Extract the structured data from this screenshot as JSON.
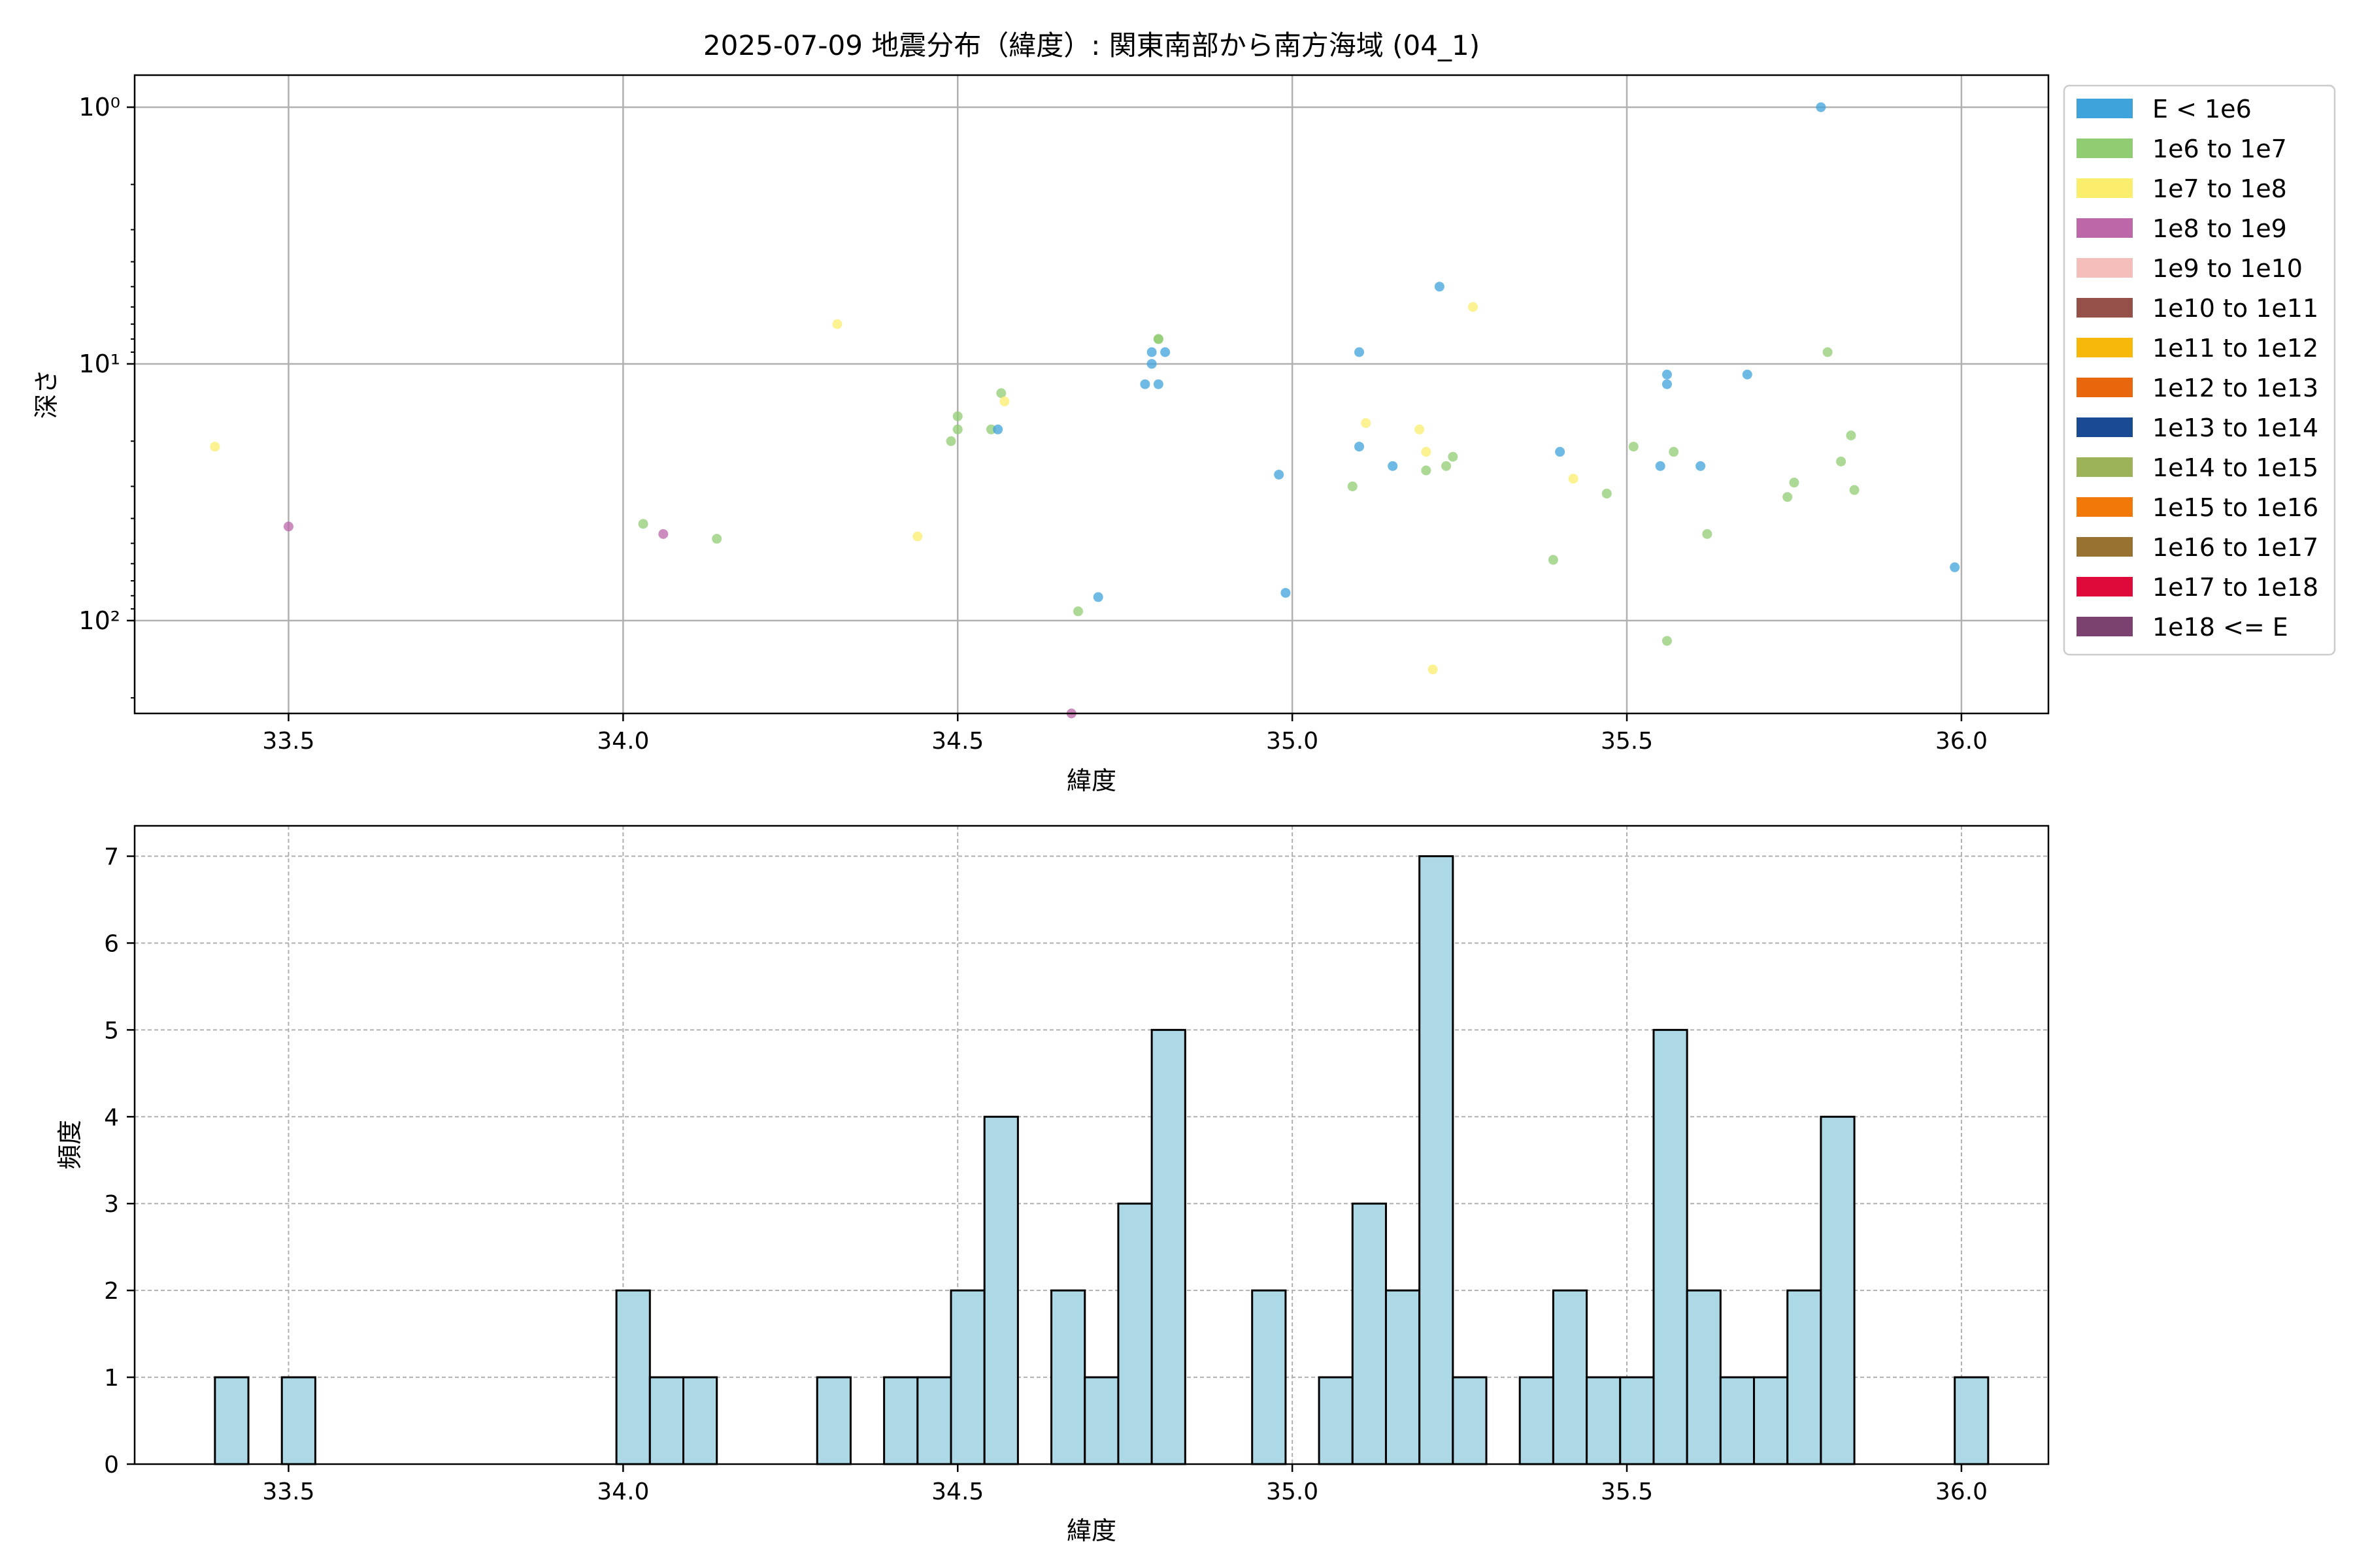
{
  "chart_data": [
    {
      "type": "scatter",
      "title": "2025-07-09 地震分布（緯度）: 関東南部から南方海域 (04_1)",
      "xlabel": "緯度",
      "ylabel": "深さ",
      "xlim": [
        33.27,
        36.13
      ],
      "ylim": [
        230,
        0.75
      ],
      "y_scale": "log-inverted",
      "y_ticks": [
        {
          "value": 1,
          "label": "10⁰"
        },
        {
          "value": 10,
          "label": "10¹"
        },
        {
          "value": 100,
          "label": "10²"
        }
      ],
      "x_ticks": [
        {
          "value": 33.5,
          "label": "33.5"
        },
        {
          "value": 34.0,
          "label": "34.0"
        },
        {
          "value": 34.5,
          "label": "34.5"
        },
        {
          "value": 35.0,
          "label": "35.0"
        },
        {
          "value": 35.5,
          "label": "35.5"
        },
        {
          "value": 36.0,
          "label": "36.0"
        }
      ],
      "grid": true,
      "legend_position": "outside-right",
      "legend": [
        {
          "label": "E < 1e6",
          "color": "#3fa3db"
        },
        {
          "label": "1e6 to 1e7",
          "color": "#90cc72"
        },
        {
          "label": "1e7 to 1e8",
          "color": "#fcee6d"
        },
        {
          "label": "1e8 to 1e9",
          "color": "#bb67a8"
        },
        {
          "label": "1e9 to 1e10",
          "color": "#f4bebb"
        },
        {
          "label": "1e10 to 1e11",
          "color": "#955049"
        },
        {
          "label": "1e11 to 1e12",
          "color": "#f8b80a"
        },
        {
          "label": "1e12 to 1e13",
          "color": "#e8660c"
        },
        {
          "label": "1e13 to 1e14",
          "color": "#1a4a94"
        },
        {
          "label": "1e14 to 1e15",
          "color": "#9db35a"
        },
        {
          "label": "1e15 to 1e16",
          "color": "#f2780a"
        },
        {
          "label": "1e16 to 1e17",
          "color": "#977230"
        },
        {
          "label": "1e17 to 1e18",
          "color": "#de0a3a"
        },
        {
          "label": "1e18 <= E",
          "color": "#7c426f"
        }
      ],
      "points": [
        {
          "x": 33.39,
          "y": 21,
          "c": 2
        },
        {
          "x": 33.5,
          "y": 43,
          "c": 3
        },
        {
          "x": 34.03,
          "y": 42,
          "c": 1
        },
        {
          "x": 34.06,
          "y": 46,
          "c": 3
        },
        {
          "x": 34.14,
          "y": 48,
          "c": 1
        },
        {
          "x": 34.32,
          "y": 7,
          "c": 2
        },
        {
          "x": 34.44,
          "y": 47,
          "c": 2
        },
        {
          "x": 34.49,
          "y": 20,
          "c": 1
        },
        {
          "x": 34.5,
          "y": 16,
          "c": 1
        },
        {
          "x": 34.5,
          "y": 18,
          "c": 1
        },
        {
          "x": 34.55,
          "y": 18,
          "c": 1
        },
        {
          "x": 34.56,
          "y": 18,
          "c": 0
        },
        {
          "x": 34.565,
          "y": 13,
          "c": 1
        },
        {
          "x": 34.57,
          "y": 14,
          "c": 2
        },
        {
          "x": 34.67,
          "y": 230,
          "c": 3
        },
        {
          "x": 34.68,
          "y": 92,
          "c": 1
        },
        {
          "x": 34.71,
          "y": 81,
          "c": 0
        },
        {
          "x": 34.78,
          "y": 12,
          "c": 0
        },
        {
          "x": 34.79,
          "y": 10,
          "c": 0
        },
        {
          "x": 34.79,
          "y": 9,
          "c": 0
        },
        {
          "x": 34.8,
          "y": 8,
          "c": 1
        },
        {
          "x": 34.8,
          "y": 8,
          "c": 1
        },
        {
          "x": 34.8,
          "y": 12,
          "c": 0
        },
        {
          "x": 34.81,
          "y": 9,
          "c": 0
        },
        {
          "x": 34.98,
          "y": 27,
          "c": 0
        },
        {
          "x": 34.99,
          "y": 78,
          "c": 0
        },
        {
          "x": 35.09,
          "y": 30,
          "c": 1
        },
        {
          "x": 35.1,
          "y": 21,
          "c": 0
        },
        {
          "x": 35.1,
          "y": 9,
          "c": 0
        },
        {
          "x": 35.11,
          "y": 17,
          "c": 2
        },
        {
          "x": 35.15,
          "y": 25,
          "c": 0
        },
        {
          "x": 35.19,
          "y": 18,
          "c": 2
        },
        {
          "x": 35.2,
          "y": 22,
          "c": 2
        },
        {
          "x": 35.2,
          "y": 26,
          "c": 1
        },
        {
          "x": 35.21,
          "y": 155,
          "c": 2
        },
        {
          "x": 35.22,
          "y": 5,
          "c": 0
        },
        {
          "x": 35.23,
          "y": 25,
          "c": 1
        },
        {
          "x": 35.24,
          "y": 23,
          "c": 1
        },
        {
          "x": 35.27,
          "y": 6,
          "c": 2
        },
        {
          "x": 35.39,
          "y": 58,
          "c": 1
        },
        {
          "x": 35.4,
          "y": 22,
          "c": 0
        },
        {
          "x": 35.42,
          "y": 28,
          "c": 2
        },
        {
          "x": 35.47,
          "y": 32,
          "c": 1
        },
        {
          "x": 35.51,
          "y": 21,
          "c": 1
        },
        {
          "x": 35.55,
          "y": 25,
          "c": 0
        },
        {
          "x": 35.56,
          "y": 120,
          "c": 1
        },
        {
          "x": 35.56,
          "y": 11,
          "c": 0
        },
        {
          "x": 35.56,
          "y": 12,
          "c": 0
        },
        {
          "x": 35.57,
          "y": 22,
          "c": 1
        },
        {
          "x": 35.61,
          "y": 25,
          "c": 0
        },
        {
          "x": 35.62,
          "y": 46,
          "c": 1
        },
        {
          "x": 35.68,
          "y": 11,
          "c": 0
        },
        {
          "x": 35.74,
          "y": 33,
          "c": 1
        },
        {
          "x": 35.75,
          "y": 29,
          "c": 1
        },
        {
          "x": 35.79,
          "y": 1,
          "c": 0
        },
        {
          "x": 35.8,
          "y": 9,
          "c": 1
        },
        {
          "x": 35.82,
          "y": 24,
          "c": 1
        },
        {
          "x": 35.835,
          "y": 19,
          "c": 1
        },
        {
          "x": 35.84,
          "y": 31,
          "c": 1
        },
        {
          "x": 35.99,
          "y": 62,
          "c": 0
        }
      ]
    },
    {
      "type": "bar",
      "title": "",
      "xlabel": "緯度",
      "ylabel": "頻度",
      "xlim": [
        33.27,
        36.13
      ],
      "ylim": [
        0,
        7.35
      ],
      "y_ticks": [
        0,
        1,
        2,
        3,
        4,
        5,
        6,
        7
      ],
      "x_ticks": [
        "33.5",
        "34.0",
        "34.5",
        "35.0",
        "35.5",
        "36.0"
      ],
      "grid": true,
      "bar_color": "#add8e6",
      "bin_start": 33.39,
      "bin_width": 0.05,
      "counts": [
        1,
        0,
        1,
        0,
        0,
        0,
        0,
        0,
        0,
        0,
        0,
        0,
        2,
        1,
        1,
        0,
        0,
        0,
        1,
        0,
        1,
        1,
        2,
        4,
        0,
        2,
        1,
        3,
        5,
        0,
        0,
        2,
        0,
        1,
        3,
        2,
        7,
        1,
        0,
        1,
        2,
        1,
        1,
        5,
        2,
        1,
        1,
        2,
        4,
        0,
        0,
        0,
        1
      ]
    }
  ]
}
